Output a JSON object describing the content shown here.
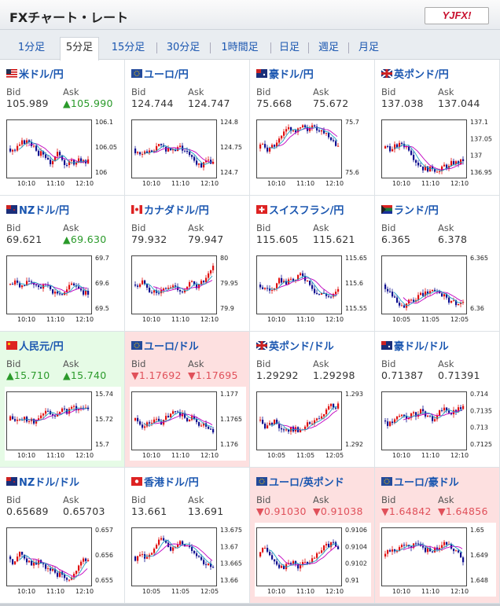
{
  "header": {
    "title": "FXチャート・レート",
    "logo": "YJFX!"
  },
  "tabs": [
    "1分足",
    "5分足",
    "15分足",
    "30分足",
    "1時間足",
    "日足",
    "週足",
    "月足"
  ],
  "active_tab": "5分足",
  "labels": {
    "bid": "Bid",
    "ask": "Ask"
  },
  "cells": [
    {
      "name": "米ドル/円",
      "bid": "105.989",
      "ask": "105.990",
      "dir_bid": "",
      "dir_ask": "up",
      "bg": "",
      "y_ticks": [
        "106.1",
        "106.05",
        "106"
      ],
      "x_ticks": [
        "10:10",
        "11:10",
        "12:10"
      ],
      "flag": "us"
    },
    {
      "name": "ユーロ/円",
      "bid": "124.744",
      "ask": "124.747",
      "dir_bid": "",
      "dir_ask": "",
      "bg": "",
      "y_ticks": [
        "124.8",
        "124.75",
        "124.7"
      ],
      "x_ticks": [
        "10:10",
        "11:10",
        "12:10"
      ],
      "flag": "eu"
    },
    {
      "name": "豪ドル/円",
      "bid": "75.668",
      "ask": "75.672",
      "dir_bid": "",
      "dir_ask": "",
      "bg": "",
      "y_ticks": [
        "75.7",
        "75.6"
      ],
      "x_ticks": [
        "10:10",
        "11:10",
        "12:10"
      ],
      "flag": "au"
    },
    {
      "name": "英ポンド/円",
      "bid": "137.038",
      "ask": "137.044",
      "dir_bid": "",
      "dir_ask": "",
      "bg": "",
      "y_ticks": [
        "137.1",
        "137.05",
        "137",
        "136.95"
      ],
      "x_ticks": [
        "10:10",
        "11:10",
        "12:10"
      ],
      "flag": "gb"
    },
    {
      "name": "NZドル/円",
      "bid": "69.621",
      "ask": "69.630",
      "dir_bid": "",
      "dir_ask": "up",
      "bg": "",
      "y_ticks": [
        "69.7",
        "69.6",
        "69.5"
      ],
      "x_ticks": [
        "10:10",
        "11:10",
        "12:10"
      ],
      "flag": "nz"
    },
    {
      "name": "カナダドル/円",
      "bid": "79.932",
      "ask": "79.947",
      "dir_bid": "",
      "dir_ask": "",
      "bg": "",
      "y_ticks": [
        "80",
        "79.95",
        "79.9"
      ],
      "x_ticks": [
        "10:10",
        "11:10",
        "12:10"
      ],
      "flag": "ca"
    },
    {
      "name": "スイスフラン/円",
      "bid": "115.605",
      "ask": "115.621",
      "dir_bid": "",
      "dir_ask": "",
      "bg": "",
      "y_ticks": [
        "115.65",
        "115.6",
        "115.55"
      ],
      "x_ticks": [
        "10:10",
        "11:10",
        "12:10"
      ],
      "flag": "ch"
    },
    {
      "name": "ランド/円",
      "bid": "6.365",
      "ask": "6.378",
      "dir_bid": "",
      "dir_ask": "",
      "bg": "",
      "y_ticks": [
        "6.365",
        "6.36"
      ],
      "x_ticks": [
        "10:05",
        "11:05",
        "12:05"
      ],
      "flag": "za"
    },
    {
      "name": "人民元/円",
      "bid": "15.710",
      "ask": "15.740",
      "dir_bid": "up",
      "dir_ask": "up",
      "bg": "green",
      "y_ticks": [
        "15.74",
        "15.72",
        "15.7"
      ],
      "x_ticks": [
        "10:10",
        "11:10",
        "12:10"
      ],
      "flag": "cn"
    },
    {
      "name": "ユーロ/ドル",
      "bid": "1.17692",
      "ask": "1.17695",
      "dir_bid": "down",
      "dir_ask": "down",
      "bg": "pink",
      "y_ticks": [
        "1.177",
        "1.1765",
        "1.176"
      ],
      "x_ticks": [
        "10:10",
        "11:10",
        "12:10"
      ],
      "flag": "eu"
    },
    {
      "name": "英ポンド/ドル",
      "bid": "1.29292",
      "ask": "1.29298",
      "dir_bid": "",
      "dir_ask": "",
      "bg": "",
      "y_ticks": [
        "1.293",
        "1.292"
      ],
      "x_ticks": [
        "10:05",
        "11:05",
        "12:05"
      ],
      "flag": "gb"
    },
    {
      "name": "豪ドル/ドル",
      "bid": "0.71387",
      "ask": "0.71391",
      "dir_bid": "",
      "dir_ask": "",
      "bg": "",
      "y_ticks": [
        "0.714",
        "0.7135",
        "0.713",
        "0.7125"
      ],
      "x_ticks": [
        "10:10",
        "11:10",
        "12:10"
      ],
      "flag": "au"
    },
    {
      "name": "NZドル/ドル",
      "bid": "0.65689",
      "ask": "0.65703",
      "dir_bid": "",
      "dir_ask": "",
      "bg": "",
      "y_ticks": [
        "0.657",
        "0.656",
        "0.655"
      ],
      "x_ticks": [
        "10:10",
        "11:10",
        "12:10"
      ],
      "flag": "nz"
    },
    {
      "name": "香港ドル/円",
      "bid": "13.661",
      "ask": "13.691",
      "dir_bid": "",
      "dir_ask": "",
      "bg": "",
      "y_ticks": [
        "13.675",
        "13.67",
        "13.665",
        "13.66"
      ],
      "x_ticks": [
        "10:05",
        "11:05",
        "12:05"
      ],
      "flag": "hk"
    },
    {
      "name": "ユーロ/英ポンド",
      "bid": "0.91030",
      "ask": "0.91038",
      "dir_bid": "down",
      "dir_ask": "down",
      "bg": "pink",
      "y_ticks": [
        "0.9106",
        "0.9104",
        "0.9102",
        "0.91"
      ],
      "x_ticks": [
        "10:10",
        "11:10",
        "12:10"
      ],
      "flag": "eu"
    },
    {
      "name": "ユーロ/豪ドル",
      "bid": "1.64842",
      "ask": "1.64856",
      "dir_bid": "down",
      "dir_ask": "down",
      "bg": "pink",
      "y_ticks": [
        "1.65",
        "1.649",
        "1.648"
      ],
      "x_ticks": [
        "10:10",
        "11:10",
        "12:10"
      ],
      "flag": "eu"
    }
  ],
  "colors": {
    "up_candle": "#e01010",
    "down_candle": "#101090",
    "ma": "#c000c0",
    "ma2": "#20a0c0"
  }
}
